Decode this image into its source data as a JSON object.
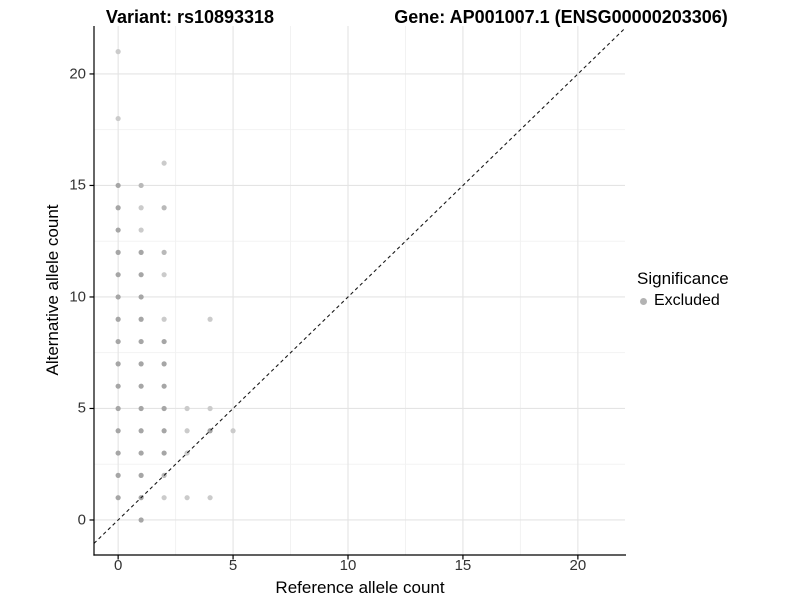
{
  "chart_data": {
    "type": "scatter",
    "title_left": "Variant: rs10893318",
    "title_right": "Gene: AP001007.1 (ENSG00000203306)",
    "xlabel": "Reference allele count",
    "ylabel": "Alternative allele count",
    "x_ticks": [
      0,
      5,
      10,
      15,
      20
    ],
    "y_ticks": [
      0,
      5,
      10,
      15,
      20
    ],
    "x_minor": [
      2.5,
      7.5,
      12.5,
      17.5
    ],
    "y_minor": [
      2.5,
      7.5,
      12.5,
      17.5
    ],
    "xlim": [
      -1.05,
      22.05
    ],
    "ylim": [
      -1.57,
      22.15
    ],
    "grid": {
      "major_color": "#e4e4e4",
      "minor_color": "#f1f1f1",
      "background": "#ffffff"
    },
    "axis_color": "#000000",
    "tick_label_color": "#333333",
    "identity_line": {
      "equation": "y = x",
      "style": "dashed",
      "color": "#1a1a1a"
    },
    "legend": {
      "title": "Significance",
      "position": "right",
      "items": [
        {
          "label": "Excluded",
          "color": "#b3b3b3"
        }
      ]
    },
    "point_radius": 2.6,
    "shade_colors": {
      "d": "#a6a6a6",
      "m": "#b9b9b9",
      "l": "#cbcbcb"
    },
    "series": [
      {
        "name": "Excluded",
        "points": [
          [
            0,
            21,
            "l"
          ],
          [
            0,
            18,
            "l"
          ],
          [
            0,
            15,
            "d"
          ],
          [
            0,
            14,
            "d"
          ],
          [
            0,
            13,
            "d"
          ],
          [
            0,
            12,
            "d"
          ],
          [
            0,
            11,
            "d"
          ],
          [
            0,
            10,
            "d"
          ],
          [
            0,
            9,
            "d"
          ],
          [
            0,
            8,
            "d"
          ],
          [
            0,
            7,
            "d"
          ],
          [
            0,
            6,
            "d"
          ],
          [
            0,
            5,
            "d"
          ],
          [
            0,
            4,
            "d"
          ],
          [
            0,
            3,
            "d"
          ],
          [
            0,
            2,
            "d"
          ],
          [
            0,
            1,
            "d"
          ],
          [
            1,
            15,
            "m"
          ],
          [
            1,
            14,
            "l"
          ],
          [
            1,
            13,
            "l"
          ],
          [
            1,
            12,
            "d"
          ],
          [
            1,
            11,
            "d"
          ],
          [
            1,
            10,
            "d"
          ],
          [
            1,
            9,
            "d"
          ],
          [
            1,
            8,
            "d"
          ],
          [
            1,
            7,
            "d"
          ],
          [
            1,
            6,
            "d"
          ],
          [
            1,
            5,
            "d"
          ],
          [
            1,
            4,
            "d"
          ],
          [
            1,
            3,
            "d"
          ],
          [
            1,
            2,
            "d"
          ],
          [
            1,
            1,
            "d"
          ],
          [
            1,
            0,
            "d"
          ],
          [
            2,
            16,
            "l"
          ],
          [
            2,
            14,
            "m"
          ],
          [
            2,
            12,
            "m"
          ],
          [
            2,
            11,
            "l"
          ],
          [
            2,
            9,
            "l"
          ],
          [
            2,
            8,
            "d"
          ],
          [
            2,
            7,
            "d"
          ],
          [
            2,
            6,
            "d"
          ],
          [
            2,
            5,
            "d"
          ],
          [
            2,
            4,
            "d"
          ],
          [
            2,
            3,
            "d"
          ],
          [
            2,
            2,
            "m"
          ],
          [
            2,
            1,
            "l"
          ],
          [
            3,
            5,
            "l"
          ],
          [
            3,
            4,
            "l"
          ],
          [
            3,
            3,
            "l"
          ],
          [
            3,
            1,
            "l"
          ],
          [
            4,
            9,
            "l"
          ],
          [
            4,
            5,
            "l"
          ],
          [
            4,
            4,
            "d"
          ],
          [
            4,
            1,
            "l"
          ],
          [
            5,
            4,
            "l"
          ]
        ]
      }
    ]
  }
}
